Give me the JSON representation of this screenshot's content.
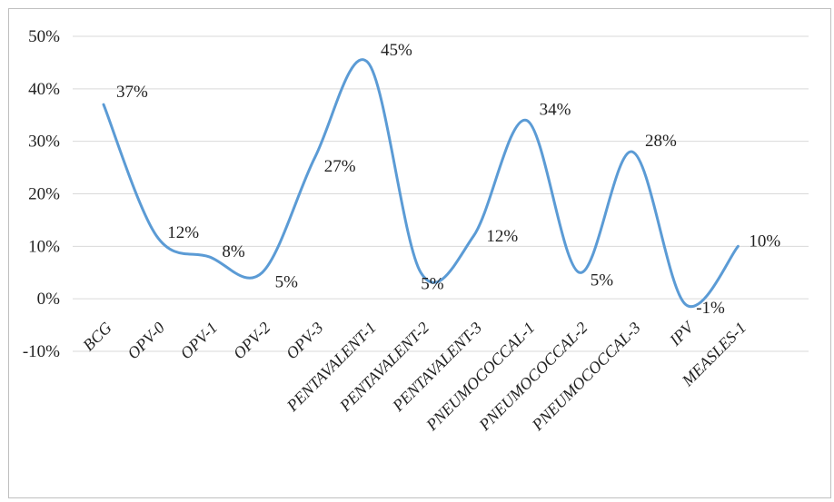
{
  "chart_data": {
    "type": "line",
    "title": "",
    "xlabel": "",
    "ylabel": "",
    "categories": [
      "BCG",
      "OPV-0",
      "OPV-1",
      "OPV-2",
      "OPV-3",
      "PENTAVALENT-1",
      "PENTAVALENT-2",
      "PENTAVALENT-3",
      "PNEUMOCOCCAL-1",
      "PNEUMOCOCCAL-2",
      "PNEUMOCOCCAL-3",
      "IPV",
      "MEASLES-1"
    ],
    "series": [
      {
        "values": [
          37,
          12,
          8,
          5,
          27,
          45,
          5,
          12,
          34,
          5,
          28,
          -1,
          10
        ],
        "value_labels": [
          "37%",
          "12%",
          "8%",
          "5%",
          "27%",
          "45%",
          "5%",
          "12%",
          "34%",
          "5%",
          "28%",
          "-1%",
          "10%"
        ],
        "color": "#5b9bd5"
      }
    ],
    "ylim": [
      -10,
      50
    ],
    "yticks": [
      50,
      40,
      30,
      20,
      10,
      0,
      -10
    ],
    "ytick_labels": [
      "50%",
      "40%",
      "30%",
      "20%",
      "10%",
      "0%",
      "-10%"
    ],
    "grid": true,
    "legend": "none",
    "line_style": "smooth"
  }
}
